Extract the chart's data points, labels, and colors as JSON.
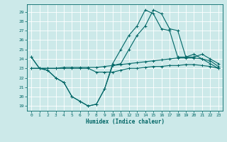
{
  "xlabel": "Humidex (Indice chaleur)",
  "bg_color": "#cce9e9",
  "grid_color": "#ffffff",
  "line_color": "#006666",
  "xlim": [
    -0.5,
    23.5
  ],
  "ylim": [
    18.5,
    29.8
  ],
  "yticks": [
    19,
    20,
    21,
    22,
    23,
    24,
    25,
    26,
    27,
    28,
    29
  ],
  "xticks": [
    0,
    1,
    2,
    3,
    4,
    5,
    6,
    7,
    8,
    9,
    10,
    11,
    12,
    13,
    14,
    15,
    16,
    17,
    18,
    19,
    20,
    21,
    22,
    23
  ],
  "series": {
    "line1": [
      24.2,
      23.0,
      22.8,
      22.0,
      21.5,
      20.0,
      19.5,
      19.0,
      19.2,
      20.8,
      23.5,
      25.0,
      26.5,
      27.5,
      29.2,
      28.8,
      27.2,
      27.0,
      24.2,
      24.2,
      24.5,
      24.0,
      23.5,
      23.0
    ],
    "line2": [
      23.0,
      23.0,
      23.0,
      23.0,
      23.1,
      23.1,
      23.1,
      23.1,
      23.1,
      23.2,
      23.3,
      23.4,
      23.5,
      23.6,
      23.7,
      23.8,
      23.9,
      24.0,
      24.1,
      24.1,
      24.1,
      24.0,
      23.8,
      23.2
    ],
    "line3": [
      23.0,
      23.0,
      23.0,
      23.0,
      23.0,
      23.0,
      23.0,
      23.0,
      22.6,
      22.6,
      22.6,
      22.8,
      23.0,
      23.0,
      23.1,
      23.2,
      23.2,
      23.3,
      23.3,
      23.4,
      23.4,
      23.3,
      23.2,
      23.0
    ],
    "line4": [
      24.2,
      23.0,
      22.8,
      22.0,
      21.5,
      20.0,
      19.5,
      19.0,
      19.2,
      20.8,
      23.3,
      23.5,
      25.0,
      26.5,
      27.5,
      29.2,
      28.8,
      27.2,
      27.0,
      24.2,
      24.2,
      24.5,
      24.0,
      23.5
    ]
  }
}
